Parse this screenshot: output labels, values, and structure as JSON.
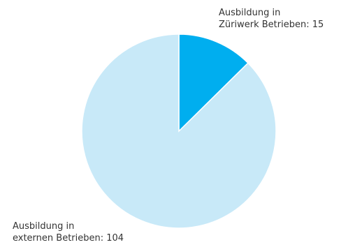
{
  "chart_data": {
    "type": "pie",
    "categories": [
      "Ausbildung in Züriwerk Betrieben",
      "Ausbildung in externen Betrieben"
    ],
    "values": [
      15,
      104
    ],
    "value_labels": [
      "Ausbildung in\nZüriwerk Betrieben: 15",
      "Ausbildung in\nexternen Betrieben: 104"
    ],
    "colors": [
      "#00aeef",
      "#c8e9f8"
    ]
  }
}
